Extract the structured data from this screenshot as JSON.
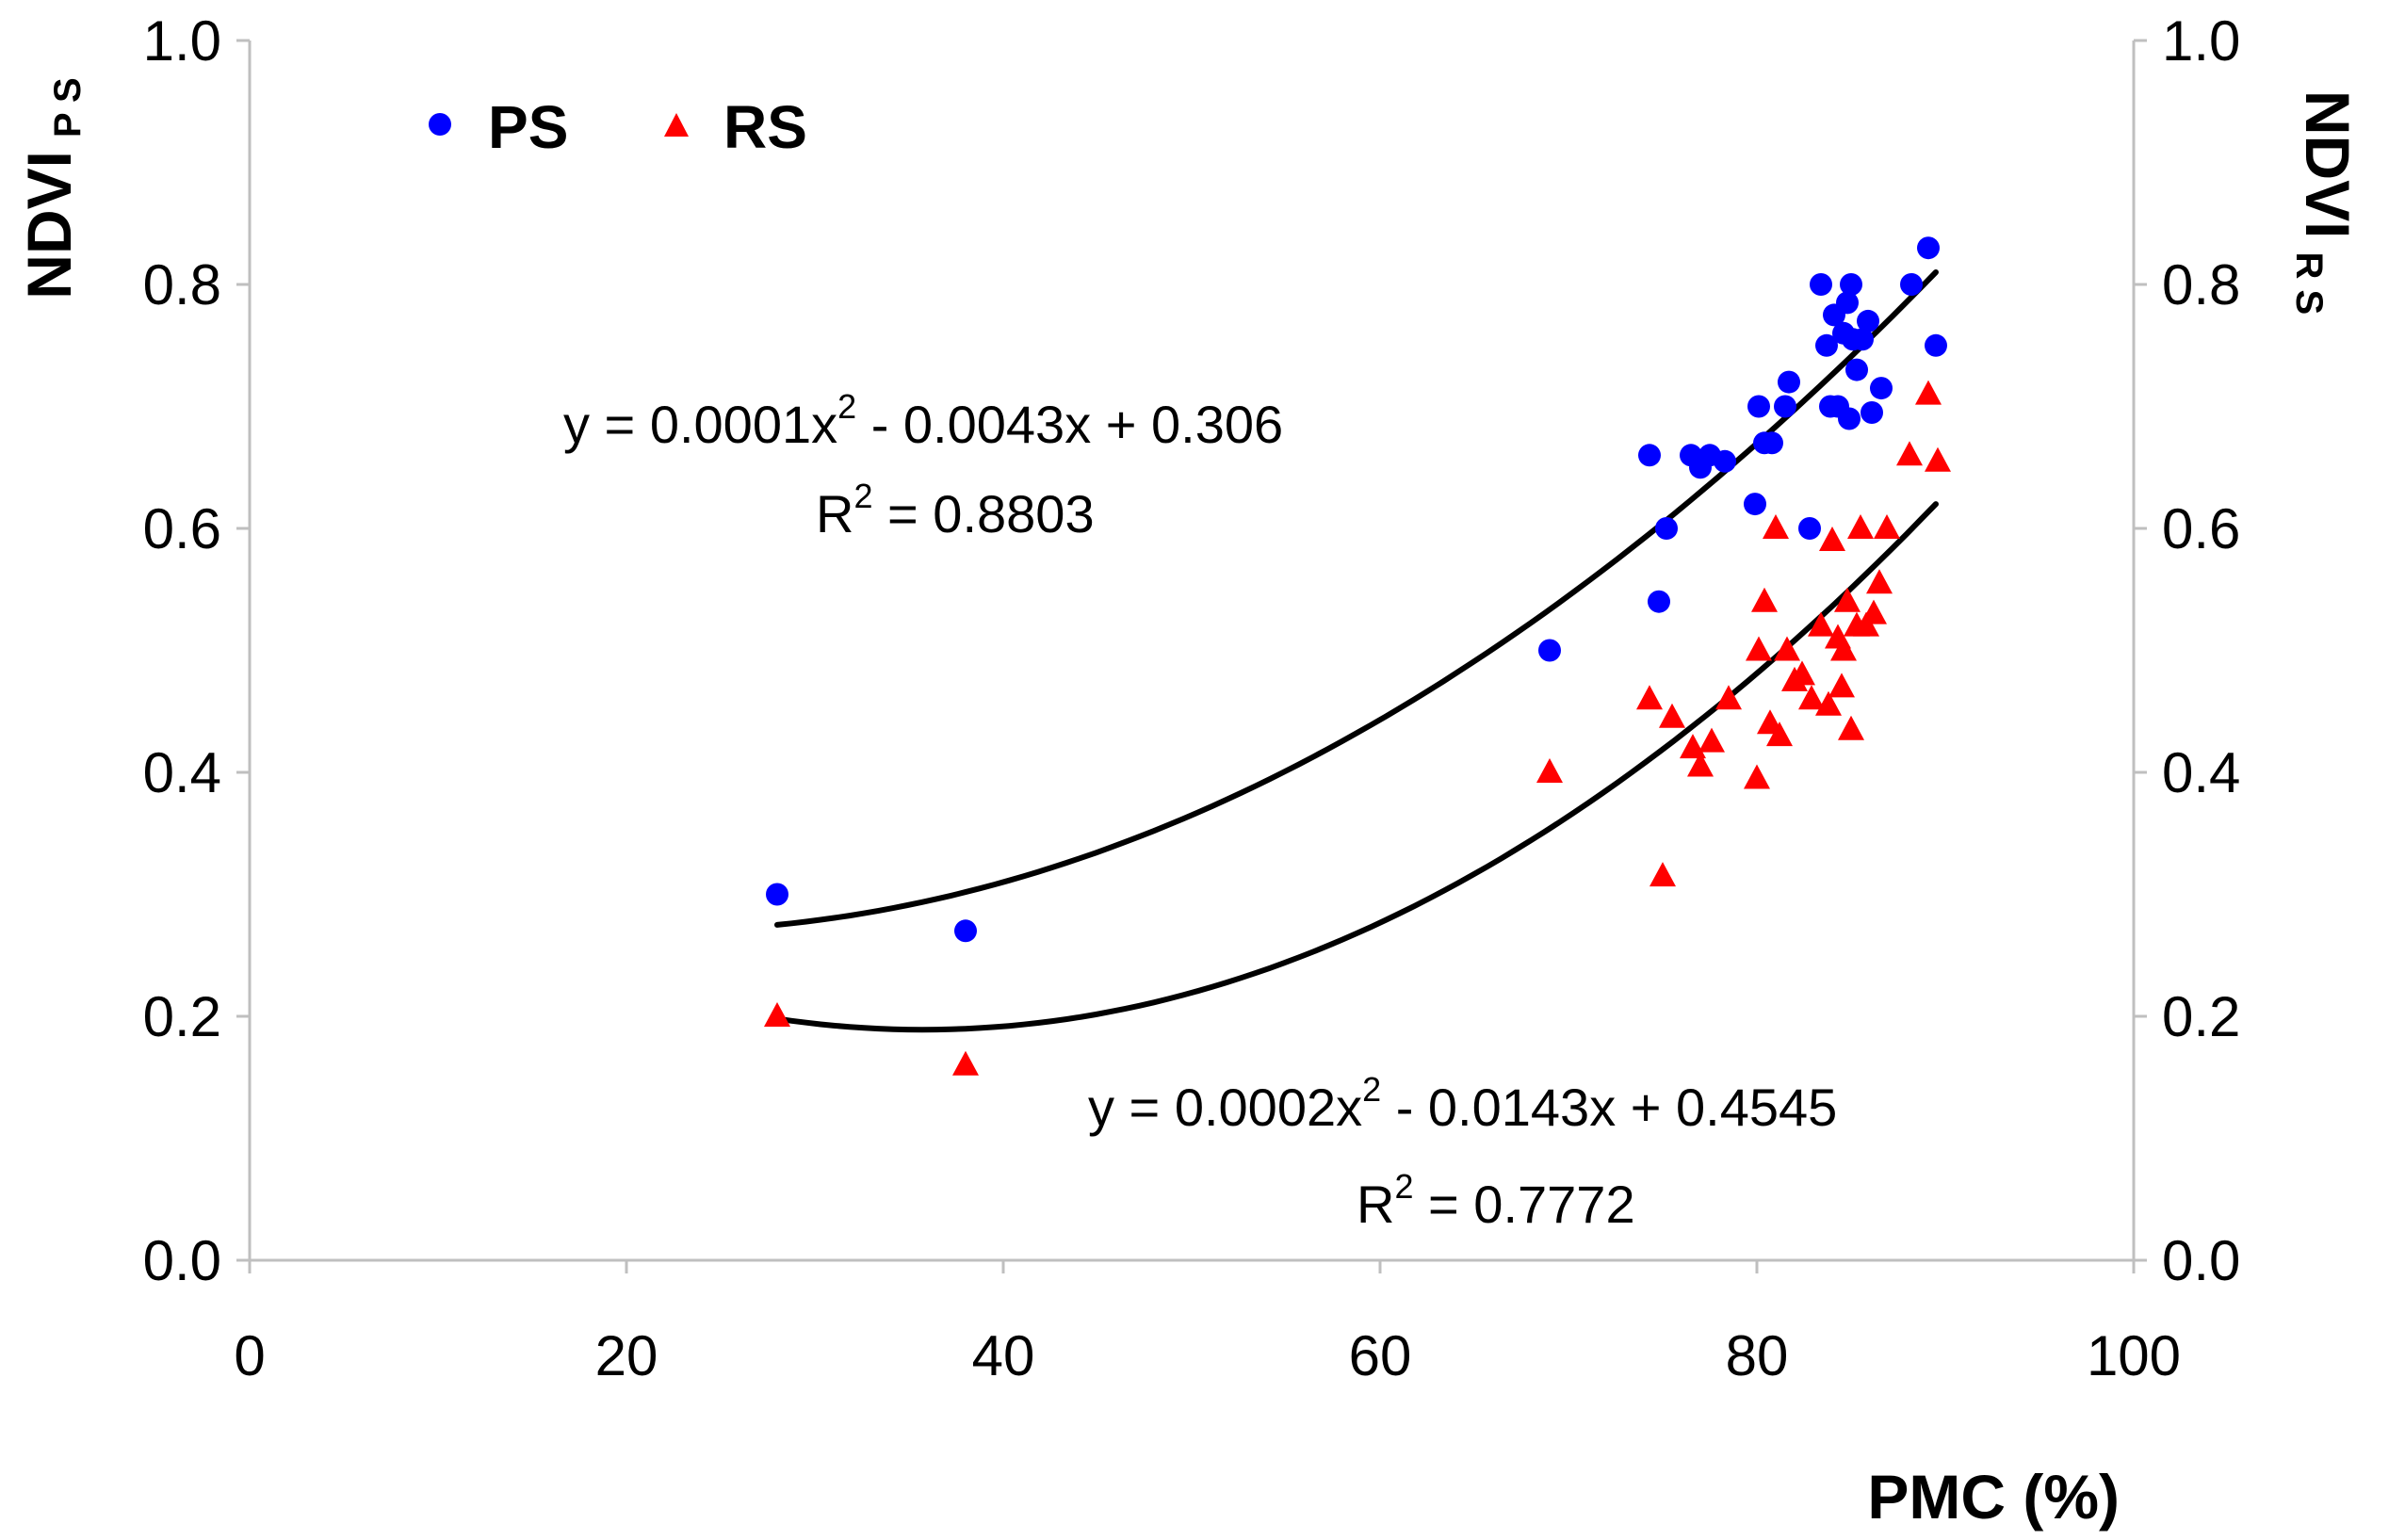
{
  "chart_data": {
    "type": "scatter",
    "title": "",
    "xlabel": "PMC (%)",
    "ylabel_left": {
      "main": "NDVI",
      "sub": "P S"
    },
    "ylabel_right": {
      "main": "NDVI",
      "sub": "R S"
    },
    "xlim": [
      0,
      100
    ],
    "ylim": [
      0,
      1.0
    ],
    "x_ticks": [
      "0",
      "20",
      "40",
      "60",
      "80",
      "100"
    ],
    "y_ticks": [
      "0.0",
      "0.2",
      "0.4",
      "0.6",
      "0.8",
      "1.0"
    ],
    "legend": [
      "PS",
      "RS"
    ],
    "colors": {
      "PS": "#0000ff",
      "RS": "#ff0000",
      "trend": "#000000"
    },
    "series": [
      {
        "name": "PS",
        "marker": "circle",
        "x": [
          28.0,
          38.0,
          69.0,
          74.3,
          74.8,
          75.2,
          76.5,
          77.0,
          77.5,
          78.3,
          79.9,
          80.1,
          80.4,
          80.8,
          81.5,
          81.7,
          82.8,
          83.4,
          83.7,
          83.9,
          84.1,
          84.3,
          84.6,
          84.8,
          84.9,
          85.0,
          85.1,
          85.3,
          85.6,
          85.9,
          86.1,
          86.6,
          88.2,
          89.1,
          89.5
        ],
        "y": [
          0.3,
          0.27,
          0.5,
          0.66,
          0.54,
          0.6,
          0.66,
          0.65,
          0.66,
          0.655,
          0.62,
          0.7,
          0.67,
          0.67,
          0.7,
          0.72,
          0.6,
          0.8,
          0.75,
          0.7,
          0.775,
          0.7,
          0.76,
          0.785,
          0.69,
          0.8,
          0.755,
          0.73,
          0.755,
          0.77,
          0.695,
          0.715,
          0.8,
          0.83,
          0.75
        ]
      },
      {
        "name": "RS",
        "marker": "triangle",
        "x": [
          28.0,
          38.0,
          69.0,
          74.3,
          75.0,
          75.5,
          76.6,
          77.0,
          77.6,
          78.5,
          80.0,
          80.1,
          80.4,
          80.7,
          81.0,
          81.2,
          81.6,
          82.0,
          82.4,
          82.9,
          83.4,
          83.8,
          84.0,
          84.3,
          84.5,
          84.6,
          84.8,
          85.0,
          85.3,
          85.5,
          85.8,
          86.2,
          86.5,
          86.9,
          88.1,
          89.1,
          89.6
        ],
        "y": [
          0.2,
          0.16,
          0.4,
          0.46,
          0.315,
          0.445,
          0.42,
          0.405,
          0.425,
          0.46,
          0.395,
          0.5,
          0.54,
          0.44,
          0.6,
          0.43,
          0.5,
          0.475,
          0.48,
          0.46,
          0.52,
          0.455,
          0.59,
          0.51,
          0.47,
          0.5,
          0.54,
          0.435,
          0.52,
          0.6,
          0.52,
          0.53,
          0.555,
          0.6,
          0.66,
          0.71,
          0.655
        ]
      }
    ],
    "trendlines": [
      {
        "series": "PS",
        "type": "polynomial",
        "coefficients": [
          0.0001,
          -0.0043,
          0.306
        ],
        "x_range": [
          28,
          89.5
        ],
        "display_y": [
          0.275,
          0.81
        ]
      },
      {
        "series": "RS",
        "type": "polynomial",
        "coefficients": [
          0.0002,
          -0.0143,
          0.4545
        ],
        "x_range": [
          28,
          89.5
        ],
        "display_y": [
          0.198,
          0.62
        ]
      }
    ],
    "annotations": [
      {
        "series": "PS",
        "equation": {
          "prefix": "y = 0.0001x",
          "sup": "2",
          "suffix": " - 0.0043x + 0.306"
        },
        "r2": {
          "prefix": "R",
          "sup": "2",
          "suffix": " = 0.8803"
        }
      },
      {
        "series": "RS",
        "equation": {
          "prefix": "y = 0.0002x",
          "sup": "2",
          "suffix": " - 0.0143x + 0.4545"
        },
        "r2": {
          "prefix": "R",
          "sup": "2",
          "suffix": " = 0.7772"
        }
      }
    ]
  }
}
